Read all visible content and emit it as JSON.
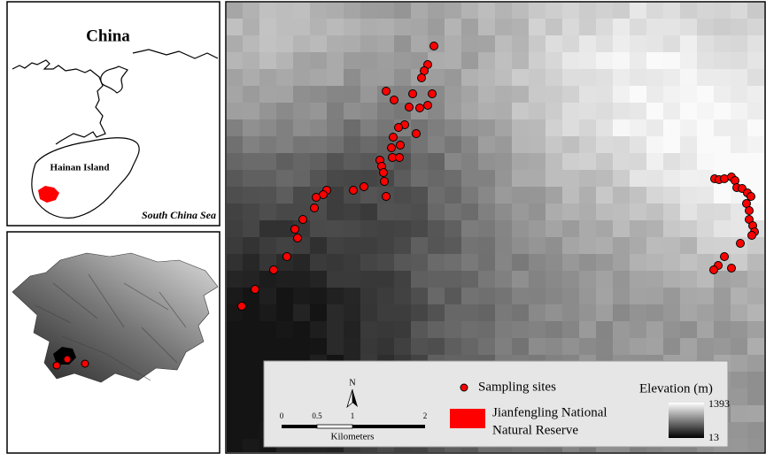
{
  "inset_china": {
    "title": "China",
    "island_label": "Hainan Island",
    "sea_label": "South China Sea"
  },
  "legend": {
    "north": "N",
    "scale_ticks": [
      "0",
      "0.5",
      "1",
      "2"
    ],
    "scale_unit": "Kilometers",
    "sites": "Sampling sites",
    "reserve": [
      "Jianfengling National",
      "Natural Reserve"
    ],
    "elevation_title": "Elevation (m)",
    "elevation_max": "1393",
    "elevation_min": "13"
  }
}
